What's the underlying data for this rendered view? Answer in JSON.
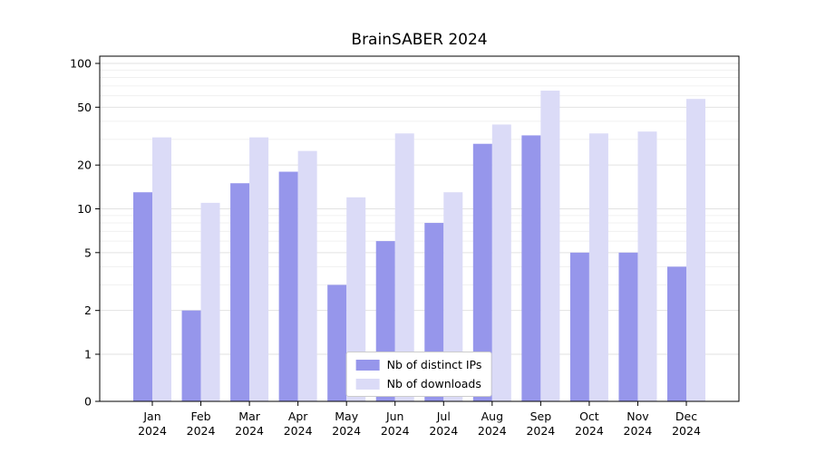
{
  "chart_data": {
    "type": "bar",
    "title": "BrainSABER 2024",
    "categories": [
      "Jan",
      "Feb",
      "Mar",
      "Apr",
      "May",
      "Jun",
      "Jul",
      "Aug",
      "Sep",
      "Oct",
      "Nov",
      "Dec"
    ],
    "year_label": "2024",
    "series": [
      {
        "name": "Nb of distinct IPs",
        "color": "#9696eb",
        "values": [
          13,
          2,
          15,
          18,
          3,
          6,
          8,
          28,
          32,
          5,
          5,
          4
        ]
      },
      {
        "name": "Nb of downloads",
        "color": "#dbdbf7",
        "values": [
          31,
          11,
          31,
          25,
          12,
          33,
          13,
          38,
          65,
          33,
          34,
          57
        ]
      }
    ],
    "yscale": "symlog",
    "y_ticks": [
      0,
      1,
      2,
      5,
      10,
      20,
      50,
      100
    ],
    "y_minor_ticks": [
      3,
      4,
      6,
      7,
      8,
      9,
      30,
      40,
      60,
      70,
      80,
      90
    ],
    "ylim": [
      0,
      100
    ],
    "grid": true,
    "legend_position": "lower center",
    "colors": {
      "axis": "#000000",
      "major_grid": "#e2e2e2",
      "minor_grid": "#f0f0f0"
    }
  }
}
